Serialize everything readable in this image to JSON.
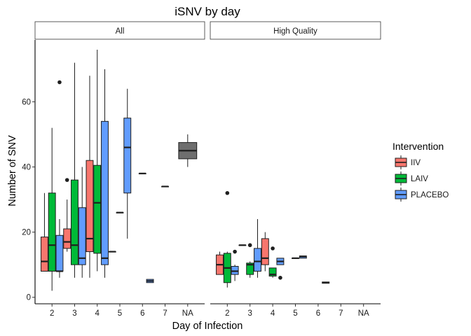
{
  "chart_data": {
    "type": "boxplot",
    "title": "iSNV by day",
    "xlabel": "Day of Infection",
    "ylabel": "Number of SNV",
    "ylim": [
      -2,
      79
    ],
    "yticks": [
      0,
      20,
      40,
      60
    ],
    "categories": [
      "2",
      "3",
      "4",
      "5",
      "6",
      "7",
      "NA"
    ],
    "legend": {
      "title": "Intervention",
      "position": "right",
      "items": [
        {
          "name": "IIV",
          "color": "#F8766D"
        },
        {
          "name": "LAIV",
          "color": "#00BA38"
        },
        {
          "name": "PLACEBO",
          "color": "#619CFF"
        }
      ]
    },
    "na_color": "#6E6E6E",
    "grid": false,
    "facets": [
      {
        "label": "All",
        "boxes": [
          {
            "day": "2",
            "group": "IIV",
            "min": 8,
            "q1": 8,
            "median": 11,
            "q3": 18.5,
            "max": 32,
            "outliers": []
          },
          {
            "day": "2",
            "group": "LAIV",
            "min": 2,
            "q1": 8,
            "median": 16,
            "q3": 32,
            "max": 52,
            "outliers": []
          },
          {
            "day": "2",
            "group": "PLACEBO",
            "min": 6,
            "q1": 8,
            "median": 8,
            "q3": 19,
            "max": 24,
            "outliers": [
              66
            ]
          },
          {
            "day": "3",
            "group": "IIV",
            "min": 14,
            "q1": 15,
            "median": 17,
            "q3": 21,
            "max": 30,
            "outliers": [
              36
            ]
          },
          {
            "day": "3",
            "group": "LAIV",
            "min": 6,
            "q1": 10,
            "median": 16,
            "q3": 36,
            "max": 72,
            "outliers": []
          },
          {
            "day": "3",
            "group": "PLACEBO",
            "min": 6,
            "q1": 10,
            "median": 12,
            "q3": 27.5,
            "max": 40,
            "outliers": []
          },
          {
            "day": "4",
            "group": "IIV",
            "min": 6,
            "q1": 14,
            "median": 18,
            "q3": 42,
            "max": 68,
            "outliers": []
          },
          {
            "day": "4",
            "group": "LAIV",
            "min": 8,
            "q1": 13.5,
            "median": 29,
            "q3": 40.5,
            "max": 76,
            "outliers": []
          },
          {
            "day": "4",
            "group": "PLACEBO",
            "min": 6,
            "q1": 10,
            "median": 12,
            "q3": 54,
            "max": 70,
            "outliers": []
          },
          {
            "day": "5",
            "group": "IIV",
            "min": 14,
            "q1": 14,
            "median": 14,
            "q3": 14,
            "max": 14,
            "outliers": []
          },
          {
            "day": "5",
            "group": "LAIV",
            "min": 26,
            "q1": 26,
            "median": 26,
            "q3": 26,
            "max": 26,
            "outliers": []
          },
          {
            "day": "5",
            "group": "PLACEBO",
            "min": 18,
            "q1": 32,
            "median": 46,
            "q3": 55,
            "max": 64,
            "outliers": []
          },
          {
            "day": "6",
            "group": "LAIV",
            "min": 38,
            "q1": 38,
            "median": 38,
            "q3": 38,
            "max": 38,
            "outliers": []
          },
          {
            "day": "6",
            "group": "PLACEBO",
            "min": 4.5,
            "q1": 4.5,
            "median": 5,
            "q3": 5.5,
            "max": 5.5,
            "outliers": []
          },
          {
            "day": "7",
            "group": "LAIV",
            "min": 34,
            "q1": 34,
            "median": 34,
            "q3": 34,
            "max": 34,
            "outliers": []
          },
          {
            "day": "NA",
            "group": "NA",
            "min": 40,
            "q1": 42.5,
            "median": 45,
            "q3": 47.5,
            "max": 50,
            "outliers": []
          }
        ]
      },
      {
        "label": "High Quality",
        "boxes": [
          {
            "day": "2",
            "group": "IIV",
            "min": 7,
            "q1": 7,
            "median": 10,
            "q3": 13,
            "max": 14,
            "outliers": []
          },
          {
            "day": "2",
            "group": "LAIV",
            "min": 3,
            "q1": 4.5,
            "median": 9,
            "q3": 13.5,
            "max": 14,
            "outliers": [
              32
            ]
          },
          {
            "day": "2",
            "group": "PLACEBO",
            "min": 5,
            "q1": 7,
            "median": 8,
            "q3": 9.5,
            "max": 10,
            "outliers": [
              14
            ]
          },
          {
            "day": "3",
            "group": "IIV",
            "min": 16,
            "q1": 16,
            "median": 16,
            "q3": 16,
            "max": 16,
            "outliers": []
          },
          {
            "day": "3",
            "group": "LAIV",
            "min": 6,
            "q1": 7,
            "median": 10,
            "q3": 10.5,
            "max": 11,
            "outliers": [
              16
            ]
          },
          {
            "day": "3",
            "group": "PLACEBO",
            "min": 6,
            "q1": 8,
            "median": 11,
            "q3": 15,
            "max": 24,
            "outliers": []
          },
          {
            "day": "4",
            "group": "IIV",
            "min": 8,
            "q1": 10,
            "median": 12,
            "q3": 18,
            "max": 20,
            "outliers": []
          },
          {
            "day": "4",
            "group": "LAIV",
            "min": 6,
            "q1": 6.5,
            "median": 7,
            "q3": 9,
            "max": 9,
            "outliers": [
              15
            ]
          },
          {
            "day": "4",
            "group": "PLACEBO",
            "min": 10,
            "q1": 10,
            "median": 11,
            "q3": 12,
            "max": 12,
            "outliers": [
              6
            ]
          },
          {
            "day": "5",
            "group": "LAIV",
            "min": 12,
            "q1": 12,
            "median": 12,
            "q3": 12,
            "max": 12,
            "outliers": []
          },
          {
            "day": "5",
            "group": "PLACEBO",
            "min": 12,
            "q1": 12,
            "median": 12.5,
            "q3": 12.7,
            "max": 12.7,
            "outliers": []
          },
          {
            "day": "6",
            "group": "PLACEBO",
            "min": 4.3,
            "q1": 4.3,
            "median": 4.5,
            "q3": 4.7,
            "max": 4.7,
            "outliers": []
          }
        ]
      }
    ]
  }
}
